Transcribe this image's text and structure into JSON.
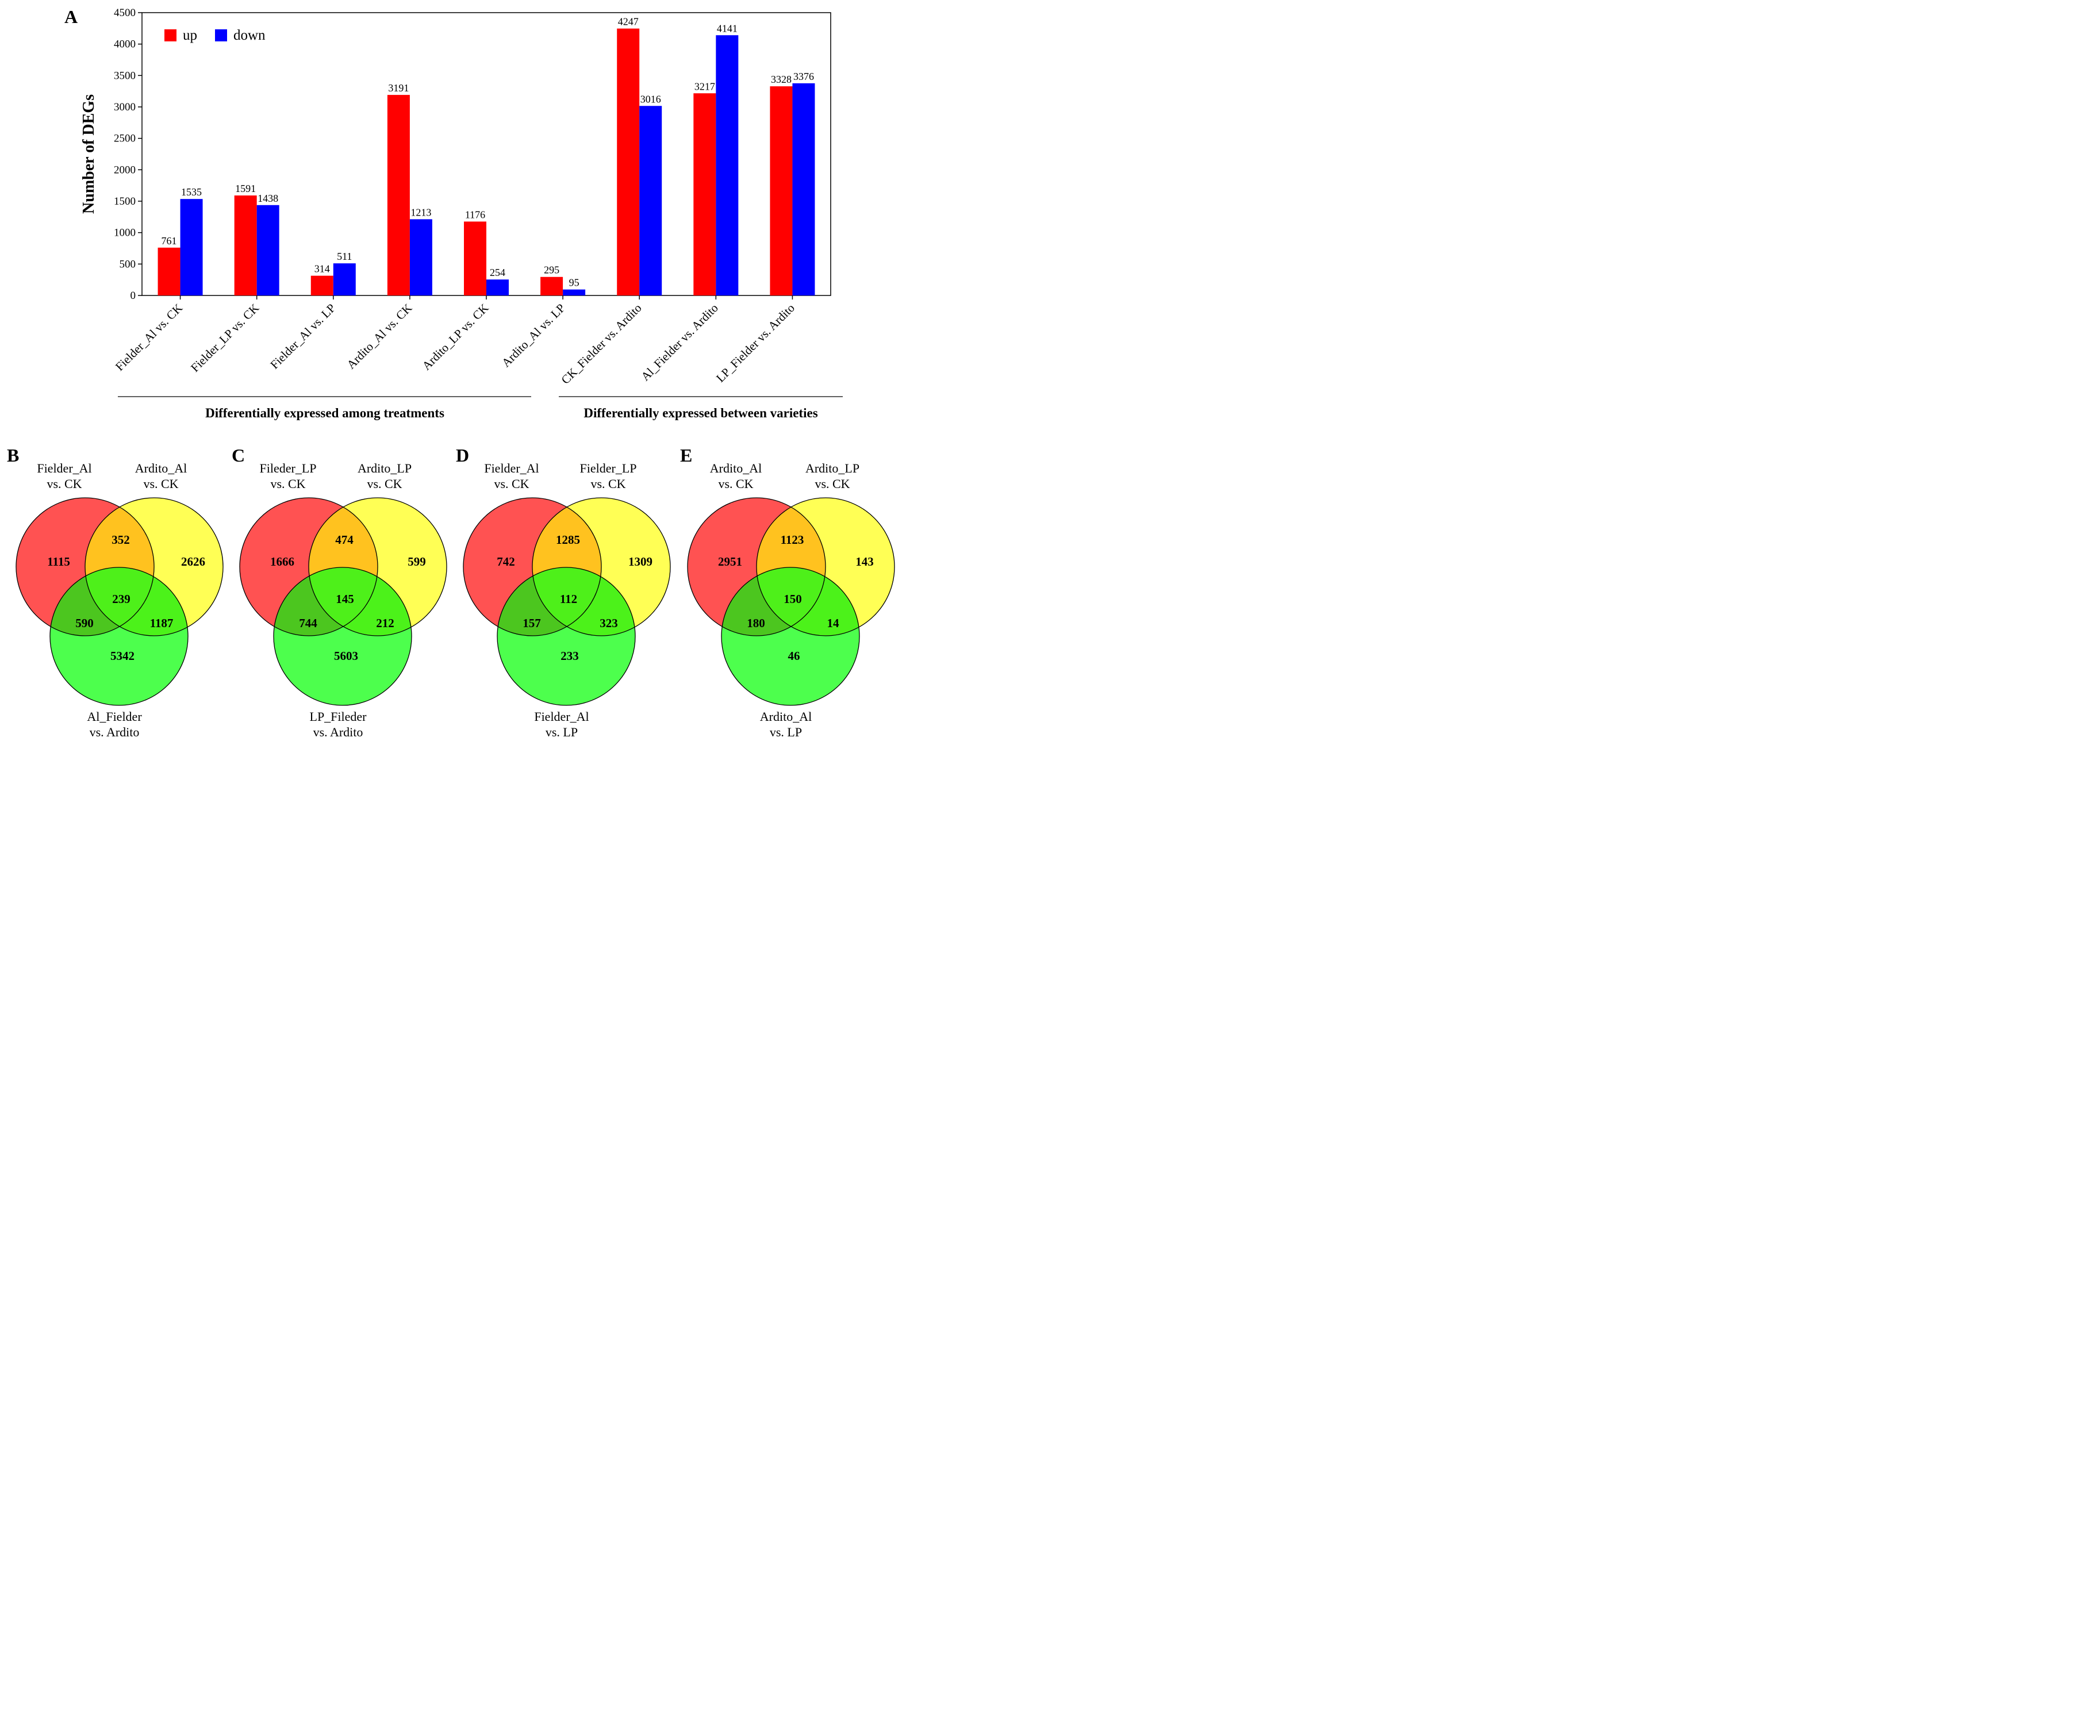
{
  "chart_data": [
    {
      "panel": "A",
      "type": "bar",
      "ylabel": "Number of DEGs",
      "ylim": [
        0,
        4500
      ],
      "yticks": [
        0,
        500,
        1000,
        1500,
        2000,
        2500,
        3000,
        3500,
        4000,
        4500
      ],
      "categories": [
        "Fielder_Al vs. CK",
        "Fielder_LP vs. CK",
        "Fielder_Al vs. LP",
        "Ardito_Al vs. CK",
        "Ardito_LP vs. CK",
        "Ardito_Al vs. LP",
        "CK_Fielder vs. Ardito",
        "Al_Fielder vs. Ardito",
        "LP_Fielder vs. Ardito"
      ],
      "series": [
        {
          "name": "up",
          "color": "#ff0000",
          "values": [
            761,
            1591,
            314,
            3191,
            1176,
            295,
            4247,
            3217,
            3328
          ]
        },
        {
          "name": "down",
          "color": "#0000ff",
          "values": [
            1535,
            1438,
            511,
            1213,
            254,
            95,
            3016,
            4141,
            3376
          ]
        }
      ],
      "legend_position": "top-left",
      "groups": [
        {
          "label": "Differentially expressed among treatments",
          "first": 0,
          "last": 5
        },
        {
          "label": "Differentially expressed between varieties",
          "first": 6,
          "last": 8
        }
      ]
    },
    {
      "panel": "B",
      "type": "venn",
      "sets": [
        {
          "line1": "Fielder_Al",
          "line2": "vs. CK",
          "color": "#ff5252"
        },
        {
          "line1": "Ardito_Al",
          "line2": "vs. CK",
          "color": "#ffff55"
        },
        {
          "line1": "Al_Fielder",
          "line2": "vs. Ardito",
          "color": "#4dff4d"
        }
      ],
      "regions": {
        "a": 1115,
        "b": 2626,
        "c": 5342,
        "ab": 352,
        "ac": 590,
        "bc": 1187,
        "abc": 239
      }
    },
    {
      "panel": "C",
      "type": "venn",
      "sets": [
        {
          "line1": "Fileder_LP",
          "line2": "vs. CK",
          "color": "#ff5252"
        },
        {
          "line1": "Ardito_LP",
          "line2": "vs. CK",
          "color": "#ffff55"
        },
        {
          "line1": "LP_Fileder",
          "line2": "vs. Ardito",
          "color": "#4dff4d"
        }
      ],
      "regions": {
        "a": 1666,
        "b": 599,
        "c": 5603,
        "ab": 474,
        "ac": 744,
        "bc": 212,
        "abc": 145
      }
    },
    {
      "panel": "D",
      "type": "venn",
      "sets": [
        {
          "line1": "Fielder_Al",
          "line2": "vs. CK",
          "color": "#ff5252"
        },
        {
          "line1": "Fielder_LP",
          "line2": "vs. CK",
          "color": "#ffff55"
        },
        {
          "line1": "Fielder_Al",
          "line2": "vs. LP",
          "color": "#4dff4d"
        }
      ],
      "regions": {
        "a": 742,
        "b": 1309,
        "c": 233,
        "ab": 1285,
        "ac": 157,
        "bc": 323,
        "abc": 112
      }
    },
    {
      "panel": "E",
      "type": "venn",
      "sets": [
        {
          "line1": "Ardito_Al",
          "line2": "vs. CK",
          "color": "#ff5252"
        },
        {
          "line1": "Ardito_LP",
          "line2": "vs. CK",
          "color": "#ffff55"
        },
        {
          "line1": "Ardito_Al",
          "line2": "vs. LP",
          "color": "#4dff4d"
        }
      ],
      "regions": {
        "a": 2951,
        "b": 143,
        "c": 46,
        "ab": 1123,
        "ac": 180,
        "bc": 14,
        "abc": 150
      }
    }
  ]
}
